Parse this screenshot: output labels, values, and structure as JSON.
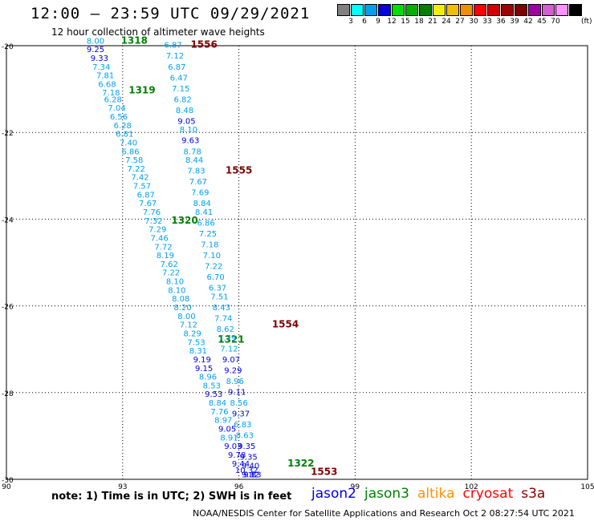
{
  "header": {
    "title": "12:00 – 23:59 UTC 09/29/2021",
    "subtitle": "12 hour collection of altimeter wave heights"
  },
  "color_scale": {
    "ticks": [
      "3",
      "6",
      "9",
      "12",
      "15",
      "18",
      "21",
      "24",
      "27",
      "30",
      "33",
      "36",
      "39",
      "42",
      "45",
      "70"
    ],
    "unit": "(ft)",
    "colors": [
      "#808080",
      "#00ffff",
      "#00a0f0",
      "#0000e0",
      "#00e000",
      "#00b000",
      "#008000",
      "#f0f000",
      "#f0c000",
      "#f09000",
      "#ff0000",
      "#d00000",
      "#a00000",
      "#800000",
      "#a000a0",
      "#d060d0",
      "#ff90ff",
      "#000000"
    ]
  },
  "footer": {
    "note": "note:  1) Time is in UTC;  2) SWH is in feet",
    "credit": "NOAA/NESDIS Center for Satellite Applications and Research    Oct  2 08:27:54 UTC 2021"
  },
  "missions": [
    {
      "name": "jason2",
      "color": "#0000e0"
    },
    {
      "name": "jason3",
      "color": "#008000"
    },
    {
      "name": "altika",
      "color": "#ff9000"
    },
    {
      "name": "cryosat",
      "color": "#ff0000"
    },
    {
      "name": "s3a",
      "color": "#800000"
    }
  ],
  "chart_data": {
    "type": "scatter",
    "xlim": [
      90,
      105
    ],
    "ylim": [
      -30,
      -20
    ],
    "x_ticks": [
      "90",
      "93",
      "96",
      "99",
      "102",
      "105"
    ],
    "y_ticks": [
      "-20",
      "-22",
      "-24",
      "-26",
      "-28",
      "-30"
    ],
    "grid": true,
    "series": [
      {
        "name": "jason3",
        "label_color": "#008000",
        "times": [
          {
            "label": "1318",
            "lon": 93.3,
            "lat": -19.95
          },
          {
            "label": "1319",
            "lon": 93.5,
            "lat": -21.1
          },
          {
            "label": "1320",
            "lon": 94.6,
            "lat": -24.1
          },
          {
            "label": "1321",
            "lon": 95.8,
            "lat": -26.85
          },
          {
            "label": "1322",
            "lon": 97.6,
            "lat": -29.7
          }
        ],
        "points": [
          {
            "lon": 92.3,
            "lat": -19.95,
            "swh": 8.0
          },
          {
            "lon": 92.3,
            "lat": -20.15,
            "swh": 9.25
          },
          {
            "lon": 92.4,
            "lat": -20.35,
            "swh": 9.33
          },
          {
            "lon": 92.45,
            "lat": -20.55,
            "swh": 7.34
          },
          {
            "lon": 92.55,
            "lat": -20.75,
            "swh": 7.81
          },
          {
            "lon": 92.6,
            "lat": -20.95,
            "swh": 6.68
          },
          {
            "lon": 92.7,
            "lat": -21.15,
            "swh": 7.18
          },
          {
            "lon": 92.75,
            "lat": -21.3,
            "swh": 6.28
          },
          {
            "lon": 92.85,
            "lat": -21.5,
            "swh": 7.04
          },
          {
            "lon": 92.9,
            "lat": -21.7,
            "swh": 6.56
          },
          {
            "lon": 93.0,
            "lat": -21.9,
            "swh": 6.28
          },
          {
            "lon": 93.05,
            "lat": -22.1,
            "swh": 6.81
          },
          {
            "lon": 93.15,
            "lat": -22.3,
            "swh": 7.4
          },
          {
            "lon": 93.2,
            "lat": -22.5,
            "swh": 6.86
          },
          {
            "lon": 93.3,
            "lat": -22.7,
            "swh": 7.58
          },
          {
            "lon": 93.35,
            "lat": -22.9,
            "swh": 7.22
          },
          {
            "lon": 93.45,
            "lat": -23.1,
            "swh": 7.42
          },
          {
            "lon": 93.5,
            "lat": -23.3,
            "swh": 7.57
          },
          {
            "lon": 93.6,
            "lat": -23.5,
            "swh": 6.87
          },
          {
            "lon": 93.65,
            "lat": -23.7,
            "swh": 7.67
          },
          {
            "lon": 93.75,
            "lat": -23.9,
            "swh": 7.76
          },
          {
            "lon": 93.8,
            "lat": -24.1,
            "swh": 7.32
          },
          {
            "lon": 93.9,
            "lat": -24.3,
            "swh": 7.29
          },
          {
            "lon": 93.95,
            "lat": -24.5,
            "swh": 7.46
          },
          {
            "lon": 94.05,
            "lat": -24.7,
            "swh": 7.72
          },
          {
            "lon": 94.1,
            "lat": -24.9,
            "swh": 8.19
          },
          {
            "lon": 94.2,
            "lat": -25.1,
            "swh": 7.62
          },
          {
            "lon": 94.25,
            "lat": -25.3,
            "swh": 7.22
          },
          {
            "lon": 94.35,
            "lat": -25.5,
            "swh": 8.1
          },
          {
            "lon": 94.4,
            "lat": -25.7,
            "swh": 8.1
          },
          {
            "lon": 94.5,
            "lat": -25.9,
            "swh": 8.08
          },
          {
            "lon": 94.55,
            "lat": -26.1,
            "swh": 8.2
          },
          {
            "lon": 94.65,
            "lat": -26.3,
            "swh": 8.0
          },
          {
            "lon": 94.7,
            "lat": -26.5,
            "swh": 7.12
          },
          {
            "lon": 94.8,
            "lat": -26.7,
            "swh": 8.29
          },
          {
            "lon": 94.9,
            "lat": -26.9,
            "swh": 7.53
          },
          {
            "lon": 94.95,
            "lat": -27.1,
            "swh": 8.31
          },
          {
            "lon": 95.05,
            "lat": -27.3,
            "swh": 9.19
          },
          {
            "lon": 95.1,
            "lat": -27.5,
            "swh": 9.15
          },
          {
            "lon": 95.2,
            "lat": -27.7,
            "swh": 8.96
          },
          {
            "lon": 95.3,
            "lat": -27.9,
            "swh": 8.53
          },
          {
            "lon": 95.35,
            "lat": -28.1,
            "swh": 9.53
          },
          {
            "lon": 95.45,
            "lat": -28.3,
            "swh": 8.84
          },
          {
            "lon": 95.5,
            "lat": -28.5,
            "swh": 7.76
          },
          {
            "lon": 95.6,
            "lat": -28.7,
            "swh": 8.97
          },
          {
            "lon": 95.7,
            "lat": -28.9,
            "swh": 9.05
          },
          {
            "lon": 95.75,
            "lat": -29.1,
            "swh": 8.91
          },
          {
            "lon": 95.85,
            "lat": -29.3,
            "swh": 9.03
          },
          {
            "lon": 95.95,
            "lat": -29.5,
            "swh": 9.78
          },
          {
            "lon": 96.05,
            "lat": -29.7,
            "swh": 9.44
          },
          {
            "lon": 96.2,
            "lat": -29.85,
            "swh": 10.32
          },
          {
            "lon": 96.3,
            "lat": -29.95,
            "swh": 9.82
          }
        ]
      },
      {
        "name": "s3a",
        "label_color": "#800000",
        "times": [
          {
            "label": "1556",
            "lon": 95.1,
            "lat": -20.05
          },
          {
            "label": "1555",
            "lon": 96.0,
            "lat": -22.95
          },
          {
            "label": "1554",
            "lon": 97.2,
            "lat": -26.5
          },
          {
            "label": "1553",
            "lon": 98.2,
            "lat": -29.9
          }
        ],
        "points": [
          {
            "lon": 94.3,
            "lat": -20.05,
            "swh": 6.87
          },
          {
            "lon": 94.35,
            "lat": -20.3,
            "swh": 7.12
          },
          {
            "lon": 94.4,
            "lat": -20.55,
            "swh": 6.87
          },
          {
            "lon": 94.45,
            "lat": -20.8,
            "swh": 6.47
          },
          {
            "lon": 94.5,
            "lat": -21.05,
            "swh": 7.15
          },
          {
            "lon": 94.55,
            "lat": -21.3,
            "swh": 6.82
          },
          {
            "lon": 94.6,
            "lat": -21.55,
            "swh": 8.48
          },
          {
            "lon": 94.65,
            "lat": -21.8,
            "swh": 9.05
          },
          {
            "lon": 94.7,
            "lat": -22.0,
            "swh": 8.1
          },
          {
            "lon": 94.75,
            "lat": -22.25,
            "swh": 9.63
          },
          {
            "lon": 94.8,
            "lat": -22.5,
            "swh": 8.78
          },
          {
            "lon": 94.85,
            "lat": -22.7,
            "swh": 8.44
          },
          {
            "lon": 94.9,
            "lat": -22.95,
            "swh": 7.83
          },
          {
            "lon": 94.95,
            "lat": -23.2,
            "swh": 7.67
          },
          {
            "lon": 95.0,
            "lat": -23.45,
            "swh": 7.69
          },
          {
            "lon": 95.05,
            "lat": -23.7,
            "swh": 8.84
          },
          {
            "lon": 95.1,
            "lat": -23.9,
            "swh": 8.41
          },
          {
            "lon": 95.15,
            "lat": -24.15,
            "swh": 6.86
          },
          {
            "lon": 95.2,
            "lat": -24.4,
            "swh": 7.25
          },
          {
            "lon": 95.25,
            "lat": -24.65,
            "swh": 7.18
          },
          {
            "lon": 95.3,
            "lat": -24.9,
            "swh": 7.1
          },
          {
            "lon": 95.35,
            "lat": -25.15,
            "swh": 7.22
          },
          {
            "lon": 95.4,
            "lat": -25.4,
            "swh": 6.7
          },
          {
            "lon": 95.45,
            "lat": -25.65,
            "swh": 6.37
          },
          {
            "lon": 95.5,
            "lat": -25.85,
            "swh": 7.51
          },
          {
            "lon": 95.55,
            "lat": -26.1,
            "swh": 8.43
          },
          {
            "lon": 95.6,
            "lat": -26.35,
            "swh": 7.74
          },
          {
            "lon": 95.65,
            "lat": -26.6,
            "swh": 8.62
          },
          {
            "lon": 95.7,
            "lat": -26.8,
            "swh": 7.79
          },
          {
            "lon": 95.75,
            "lat": -27.05,
            "swh": 7.12
          },
          {
            "lon": 95.8,
            "lat": -27.3,
            "swh": 9.07
          },
          {
            "lon": 95.85,
            "lat": -27.55,
            "swh": 9.29
          },
          {
            "lon": 95.9,
            "lat": -27.8,
            "swh": 8.96
          },
          {
            "lon": 95.95,
            "lat": -28.05,
            "swh": 9.11
          },
          {
            "lon": 96.0,
            "lat": -28.3,
            "swh": 8.56
          },
          {
            "lon": 96.05,
            "lat": -28.55,
            "swh": 9.37
          },
          {
            "lon": 96.1,
            "lat": -28.8,
            "swh": 6.83
          },
          {
            "lon": 96.15,
            "lat": -29.05,
            "swh": 8.63
          },
          {
            "lon": 96.2,
            "lat": -29.3,
            "swh": 9.35
          },
          {
            "lon": 96.25,
            "lat": -29.55,
            "swh": 9.35
          },
          {
            "lon": 96.3,
            "lat": -29.75,
            "swh": 9.4
          },
          {
            "lon": 96.35,
            "lat": -29.95,
            "swh": 9.83
          }
        ]
      }
    ]
  }
}
